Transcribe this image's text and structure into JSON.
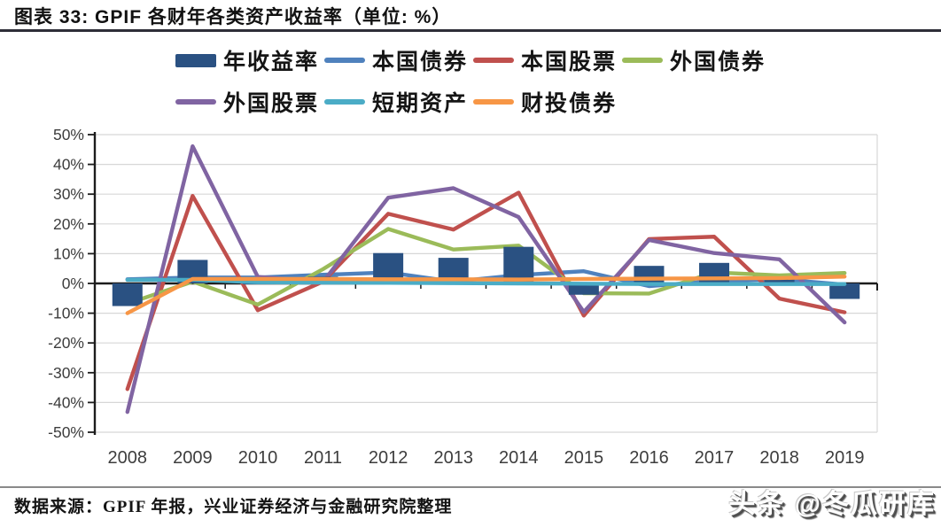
{
  "header": {
    "title": "图表 33: GPIF 各财年各类资产收益率（单位: %）"
  },
  "footer": {
    "source": "数据来源：GPIF 年报，兴业证券经济与金融研究院整理",
    "watermark": "头条 @冬瓜研库"
  },
  "chart_data": {
    "type": "combo-bar-line",
    "title": "图表 33: GPIF 各财年各类资产收益率（单位: %）",
    "categories": [
      "2008",
      "2009",
      "2010",
      "2011",
      "2012",
      "2013",
      "2014",
      "2015",
      "2016",
      "2017",
      "2018",
      "2019"
    ],
    "y_axis": {
      "min": -50,
      "max": 50,
      "step": 10,
      "tick_labels": [
        "50%",
        "40%",
        "30%",
        "20%",
        "10%",
        "0%",
        "-10%",
        "-20%",
        "-30%",
        "-40%",
        "-50%"
      ]
    },
    "grid": true,
    "legend_position": "top",
    "series": [
      {
        "id": "annual-return",
        "name": "年收益率",
        "type": "bar",
        "color": "#2a5182",
        "values": [
          -7.6,
          7.9,
          -0.3,
          2.3,
          10.2,
          8.6,
          12.3,
          -3.8,
          5.9,
          6.9,
          1.5,
          -5.2
        ]
      },
      {
        "id": "domestic-bonds",
        "name": "本国债券",
        "type": "line",
        "color": "#4f81bd",
        "values": [
          1.4,
          2.0,
          2.0,
          2.9,
          3.7,
          0.6,
          2.8,
          4.1,
          -0.9,
          0.8,
          1.4,
          -0.4
        ]
      },
      {
        "id": "domestic-stocks",
        "name": "本国股票",
        "type": "line",
        "color": "#c0504d",
        "values": [
          -35.5,
          29.4,
          -9.0,
          0.6,
          23.4,
          18.1,
          30.5,
          -10.8,
          14.9,
          15.7,
          -5.1,
          -9.7
        ]
      },
      {
        "id": "foreign-bonds",
        "name": "外国债券",
        "type": "line",
        "color": "#9bbb59",
        "values": [
          -6.8,
          0.6,
          -7.1,
          4.8,
          18.3,
          11.4,
          12.7,
          -3.3,
          -3.4,
          3.7,
          2.7,
          3.5
        ]
      },
      {
        "id": "foreign-stocks",
        "name": "外国股票",
        "type": "line",
        "color": "#8064a2",
        "values": [
          -43.2,
          46.1,
          2.2,
          0.5,
          28.8,
          32.0,
          22.3,
          -9.6,
          14.6,
          10.2,
          8.1,
          -13.1
        ]
      },
      {
        "id": "short-term-assets",
        "name": "短期资产",
        "type": "line",
        "color": "#4bacc6",
        "values": [
          1.2,
          1.2,
          0.4,
          0.3,
          0.2,
          0.1,
          0.0,
          -0.1,
          -0.2,
          -0.2,
          -0.2,
          -0.2
        ]
      },
      {
        "id": "filp-bonds",
        "name": "财投债券",
        "type": "line",
        "color": "#f79646",
        "values": [
          -10.0,
          1.5,
          1.5,
          1.5,
          1.4,
          1.4,
          1.3,
          1.5,
          1.6,
          1.7,
          1.8,
          2.3
        ]
      }
    ],
    "style": {
      "grid_color": "#d7d7d7",
      "axis_color": "#1c1c1c",
      "tick_label_color": "#3d3d3d"
    }
  }
}
